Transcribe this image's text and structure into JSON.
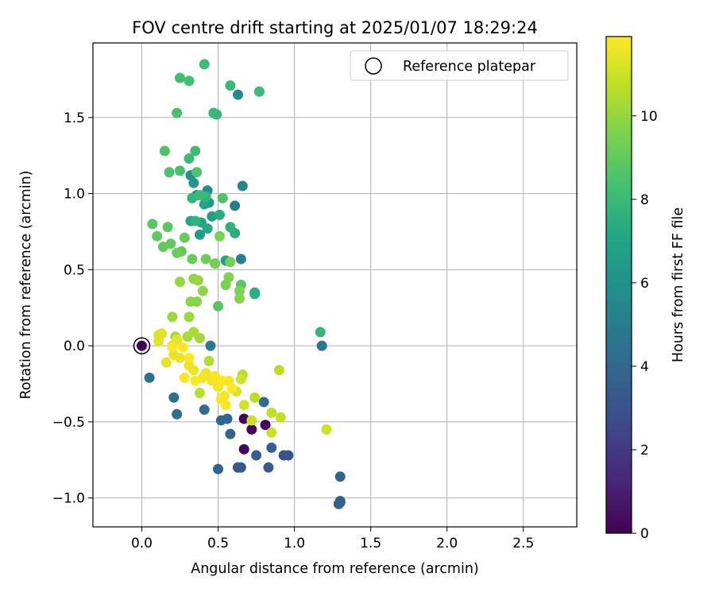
{
  "chart_data": {
    "type": "scatter",
    "title": "FOV centre drift starting at 2025/01/07 18:29:24",
    "xlabel": "Angular distance from reference (arcmin)",
    "ylabel": "Rotation from reference (arcmin)",
    "xlim": [
      -0.32,
      2.85
    ],
    "ylim": [
      -1.19,
      1.99
    ],
    "xticks": [
      0.0,
      0.5,
      1.0,
      1.5,
      2.0,
      2.5
    ],
    "xtick_labels": [
      "0.0",
      "0.5",
      "1.0",
      "1.5",
      "2.0",
      "2.5"
    ],
    "yticks": [
      -1.0,
      -0.5,
      0.0,
      0.5,
      1.0,
      1.5
    ],
    "ytick_labels": [
      "−1.0",
      "−0.5",
      "0.0",
      "0.5",
      "1.0",
      "1.5"
    ],
    "grid": true,
    "legend": {
      "placement": "top-right",
      "entries": [
        "Reference platepar"
      ]
    },
    "reference_point": {
      "x": 0.0,
      "y": 0.0
    },
    "colorbar": {
      "label": "Hours from first FF file",
      "range": [
        0,
        11.9
      ],
      "ticks": [
        0,
        2,
        4,
        6,
        8,
        10
      ],
      "tick_labels": [
        "0",
        "2",
        "4",
        "6",
        "8",
        "10"
      ],
      "colormap": "viridis"
    },
    "points": [
      [
        0.63,
        -0.8,
        0.05
      ],
      [
        0.67,
        -0.48,
        0.1
      ],
      [
        0.81,
        -0.52,
        0.15
      ],
      [
        0.67,
        -0.68,
        0.2
      ],
      [
        0.72,
        -0.55,
        0.3
      ],
      [
        0.93,
        -0.72,
        3.0
      ],
      [
        0.96,
        -0.72,
        3.1
      ],
      [
        0.63,
        -0.8,
        3.2
      ],
      [
        0.65,
        -0.8,
        3.3
      ],
      [
        0.83,
        -0.8,
        3.4
      ],
      [
        0.75,
        -0.72,
        3.5
      ],
      [
        0.85,
        -0.67,
        3.6
      ],
      [
        1.29,
        -1.04,
        3.6
      ],
      [
        1.3,
        -1.03,
        3.7
      ],
      [
        1.3,
        -1.02,
        3.7
      ],
      [
        1.3,
        -0.86,
        3.8
      ],
      [
        0.5,
        -0.81,
        3.8
      ],
      [
        0.58,
        -0.58,
        3.9
      ],
      [
        0.56,
        -0.48,
        4.0
      ],
      [
        0.52,
        -0.49,
        4.0
      ],
      [
        0.8,
        -0.37,
        4.2
      ],
      [
        0.41,
        -0.42,
        4.2
      ],
      [
        0.23,
        -0.45,
        4.3
      ],
      [
        0.21,
        -0.34,
        4.4
      ],
      [
        0.05,
        -0.21,
        4.5
      ],
      [
        1.18,
        0.0,
        4.6
      ],
      [
        0.45,
        0.0,
        4.8
      ],
      [
        0.61,
        0.92,
        5.0
      ],
      [
        0.65,
        0.57,
        5.2
      ],
      [
        0.66,
        1.05,
        5.4
      ],
      [
        0.43,
        1.02,
        5.6
      ],
      [
        0.63,
        1.65,
        5.8
      ],
      [
        0.36,
        0.99,
        5.9
      ],
      [
        0.32,
        1.12,
        6.0
      ],
      [
        0.44,
        0.94,
        6.2
      ],
      [
        0.34,
        1.07,
        6.4
      ],
      [
        0.38,
        0.73,
        6.5
      ],
      [
        0.46,
        0.85,
        6.6
      ],
      [
        0.55,
        0.56,
        6.8
      ],
      [
        0.41,
        0.93,
        6.9
      ],
      [
        0.48,
        0.54,
        7.0
      ],
      [
        0.32,
        0.82,
        7.0
      ],
      [
        0.39,
        0.81,
        7.1
      ],
      [
        0.43,
        0.77,
        7.2
      ],
      [
        0.51,
        0.86,
        7.3
      ],
      [
        0.61,
        0.74,
        7.4
      ],
      [
        0.74,
        0.35,
        7.5
      ],
      [
        0.74,
        0.34,
        7.5
      ],
      [
        0.58,
        0.78,
        7.6
      ],
      [
        0.33,
        0.97,
        7.7
      ],
      [
        0.35,
        0.82,
        7.7
      ],
      [
        0.42,
        0.98,
        7.8
      ],
      [
        1.17,
        0.09,
        7.8
      ],
      [
        0.47,
        1.53,
        7.9
      ],
      [
        0.49,
        1.52,
        7.9
      ],
      [
        0.58,
        1.71,
        8.0
      ],
      [
        0.77,
        1.67,
        8.0
      ],
      [
        0.31,
        1.23,
        8.1
      ],
      [
        0.38,
        0.99,
        8.1
      ],
      [
        0.35,
        1.28,
        8.2
      ],
      [
        0.41,
        1.85,
        8.2
      ],
      [
        0.25,
        1.76,
        8.3
      ],
      [
        0.31,
        1.74,
        8.3
      ],
      [
        0.23,
        1.53,
        8.4
      ],
      [
        0.25,
        1.15,
        8.4
      ],
      [
        0.18,
        1.14,
        8.5
      ],
      [
        0.36,
        1.14,
        8.5
      ],
      [
        0.15,
        1.28,
        8.6
      ],
      [
        0.53,
        0.97,
        8.6
      ],
      [
        0.5,
        0.26,
        8.7
      ],
      [
        0.65,
        0.4,
        8.7
      ],
      [
        0.07,
        0.8,
        8.8
      ],
      [
        0.17,
        0.78,
        8.8
      ],
      [
        0.1,
        0.72,
        8.9
      ],
      [
        0.19,
        0.67,
        8.9
      ],
      [
        0.14,
        0.65,
        9.0
      ],
      [
        0.26,
        0.62,
        9.0
      ],
      [
        0.28,
        0.71,
        9.1
      ],
      [
        0.23,
        0.61,
        9.2
      ],
      [
        0.33,
        0.57,
        9.2
      ],
      [
        0.42,
        0.57,
        9.3
      ],
      [
        0.48,
        0.54,
        9.4
      ],
      [
        0.58,
        0.55,
        9.4
      ],
      [
        0.55,
        0.4,
        9.5
      ],
      [
        0.51,
        0.72,
        9.5
      ],
      [
        0.64,
        0.36,
        9.6
      ],
      [
        0.57,
        0.45,
        9.6
      ],
      [
        0.64,
        0.31,
        9.7
      ],
      [
        0.32,
        0.29,
        9.8
      ],
      [
        0.36,
        0.29,
        9.8
      ],
      [
        0.4,
        0.36,
        9.9
      ],
      [
        0.34,
        0.44,
        9.9
      ],
      [
        0.37,
        0.43,
        10.0
      ],
      [
        0.25,
        0.42,
        10.0
      ],
      [
        0.2,
        0.19,
        10.1
      ],
      [
        0.31,
        0.19,
        10.1
      ],
      [
        0.38,
        0.05,
        10.2
      ],
      [
        0.22,
        0.06,
        10.3
      ],
      [
        0.3,
        0.06,
        10.3
      ],
      [
        0.34,
        0.09,
        10.4
      ],
      [
        0.44,
        -0.1,
        10.5
      ],
      [
        0.38,
        -0.31,
        10.6
      ],
      [
        0.66,
        -0.19,
        10.6
      ],
      [
        0.9,
        -0.16,
        10.7
      ],
      [
        0.74,
        -0.34,
        10.7
      ],
      [
        0.85,
        -0.44,
        10.8
      ],
      [
        0.85,
        -0.57,
        10.9
      ],
      [
        0.91,
        -0.47,
        10.9
      ],
      [
        1.21,
        -0.55,
        11.0
      ],
      [
        0.72,
        -0.49,
        11.0
      ],
      [
        0.67,
        -0.39,
        11.1
      ],
      [
        0.65,
        -0.22,
        11.1
      ],
      [
        0.62,
        -0.3,
        11.2
      ],
      [
        0.2,
        0.0,
        11.2
      ],
      [
        0.13,
        0.08,
        11.3
      ],
      [
        0.11,
        0.07,
        11.3
      ],
      [
        0.11,
        0.03,
        11.4
      ],
      [
        0.23,
        0.04,
        11.4
      ],
      [
        0.21,
        -0.06,
        11.5
      ],
      [
        0.25,
        -0.08,
        11.5
      ],
      [
        0.16,
        -0.11,
        11.5
      ],
      [
        0.31,
        -0.13,
        11.6
      ],
      [
        0.34,
        -0.16,
        11.6
      ],
      [
        0.42,
        -0.18,
        11.6
      ],
      [
        0.46,
        -0.23,
        11.7
      ],
      [
        0.5,
        -0.27,
        11.7
      ],
      [
        0.54,
        -0.33,
        11.7
      ],
      [
        0.55,
        -0.39,
        11.8
      ],
      [
        0.57,
        -0.23,
        11.8
      ],
      [
        0.48,
        -0.2,
        11.8
      ],
      [
        0.4,
        -0.21,
        11.8
      ],
      [
        0.35,
        -0.23,
        11.9
      ],
      [
        0.28,
        -0.21,
        11.9
      ],
      [
        0.31,
        -0.08,
        11.9
      ],
      [
        0.2,
        -0.01,
        11.9
      ],
      [
        0.27,
        -0.01,
        11.9
      ],
      [
        0.52,
        -0.35,
        11.9
      ],
      [
        0.59,
        -0.28,
        11.9
      ],
      [
        0.53,
        -0.23,
        11.9
      ]
    ]
  }
}
